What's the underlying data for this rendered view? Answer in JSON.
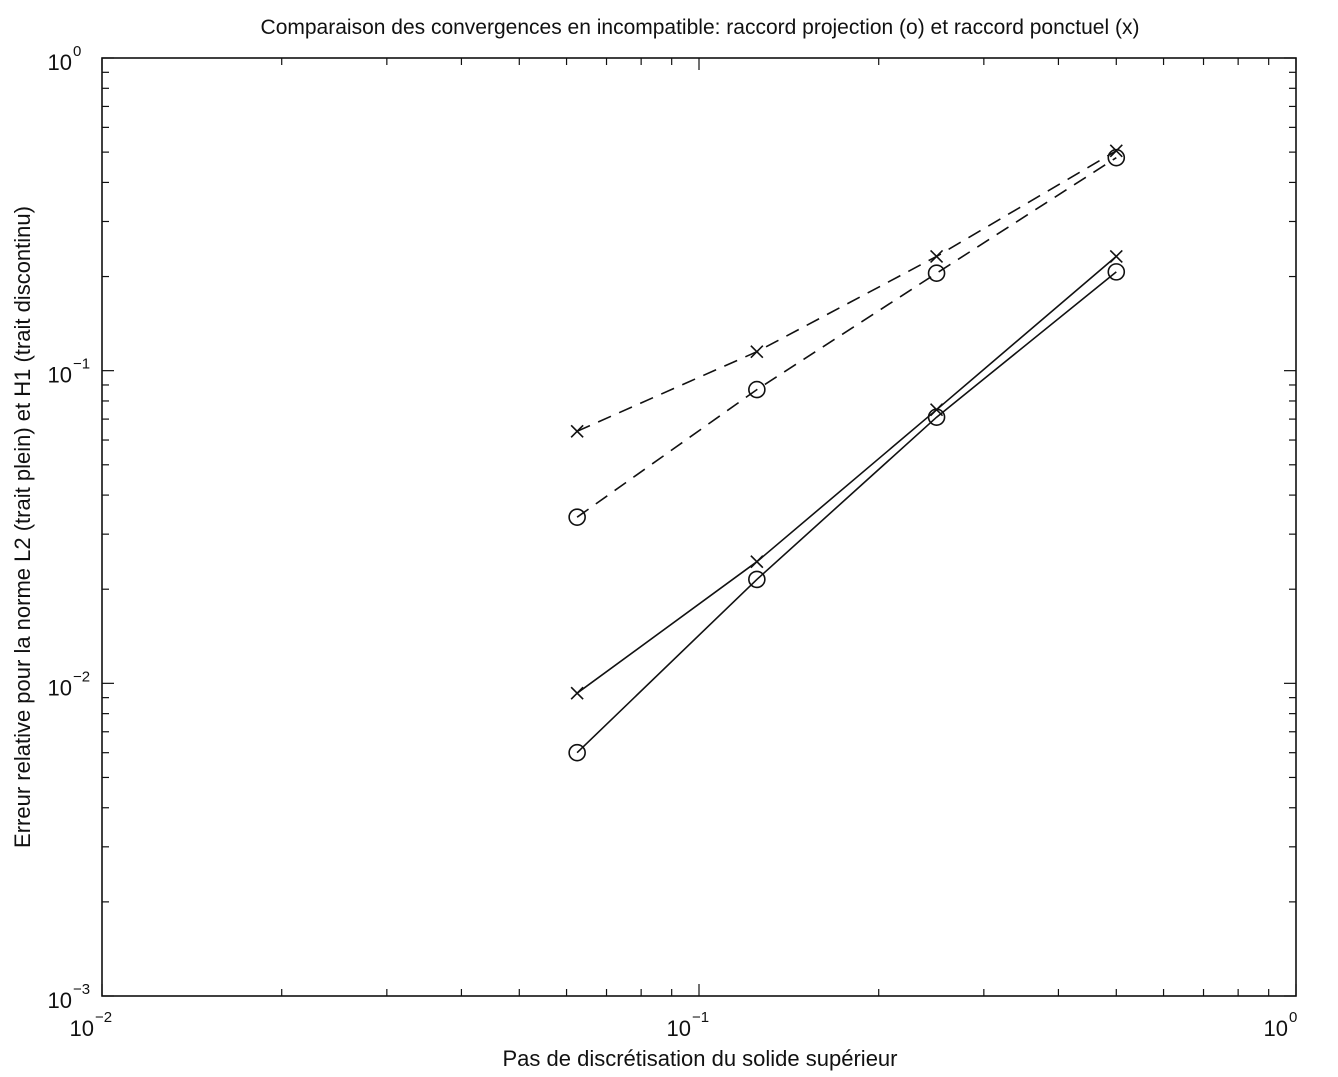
{
  "chart_data": {
    "type": "line",
    "title": "Comparaison des convergences en incompatible: raccord projection (o) et raccord ponctuel (x)",
    "xlabel": "Pas de discrétisation du solide supérieur",
    "ylabel": "Erreur relative pour la norme L2 (trait plein) et H1 (trait discontinu)",
    "xscale": "log",
    "yscale": "log",
    "xlim": [
      0.01,
      1
    ],
    "ylim": [
      0.001,
      1
    ],
    "x_ticks": [
      {
        "value": 0.01,
        "base": "10",
        "exp": "−2"
      },
      {
        "value": 0.1,
        "base": "10",
        "exp": "−1"
      },
      {
        "value": 1,
        "base": "10",
        "exp": "0"
      }
    ],
    "y_ticks": [
      {
        "value": 0.001,
        "base": "10",
        "exp": "−3"
      },
      {
        "value": 0.01,
        "base": "10",
        "exp": "−2"
      },
      {
        "value": 0.1,
        "base": "10",
        "exp": "−1"
      },
      {
        "value": 1,
        "base": "10",
        "exp": "0"
      }
    ],
    "grid": false,
    "legend": "none",
    "line_color": "#111111",
    "series": [
      {
        "marker": "x",
        "linestyle": "dashed",
        "x": [
          0.0625,
          0.125,
          0.25,
          0.5
        ],
        "y": [
          0.064,
          0.115,
          0.232,
          0.505
        ]
      },
      {
        "marker": "o",
        "linestyle": "dashed",
        "x": [
          0.0625,
          0.125,
          0.25,
          0.5
        ],
        "y": [
          0.034,
          0.087,
          0.205,
          0.48
        ]
      },
      {
        "marker": "x",
        "linestyle": "solid",
        "x": [
          0.0625,
          0.125,
          0.25,
          0.5
        ],
        "y": [
          0.0093,
          0.0245,
          0.075,
          0.232
        ]
      },
      {
        "marker": "o",
        "linestyle": "solid",
        "x": [
          0.0625,
          0.125,
          0.25,
          0.5
        ],
        "y": [
          0.006,
          0.0215,
          0.071,
          0.207
        ]
      }
    ]
  }
}
